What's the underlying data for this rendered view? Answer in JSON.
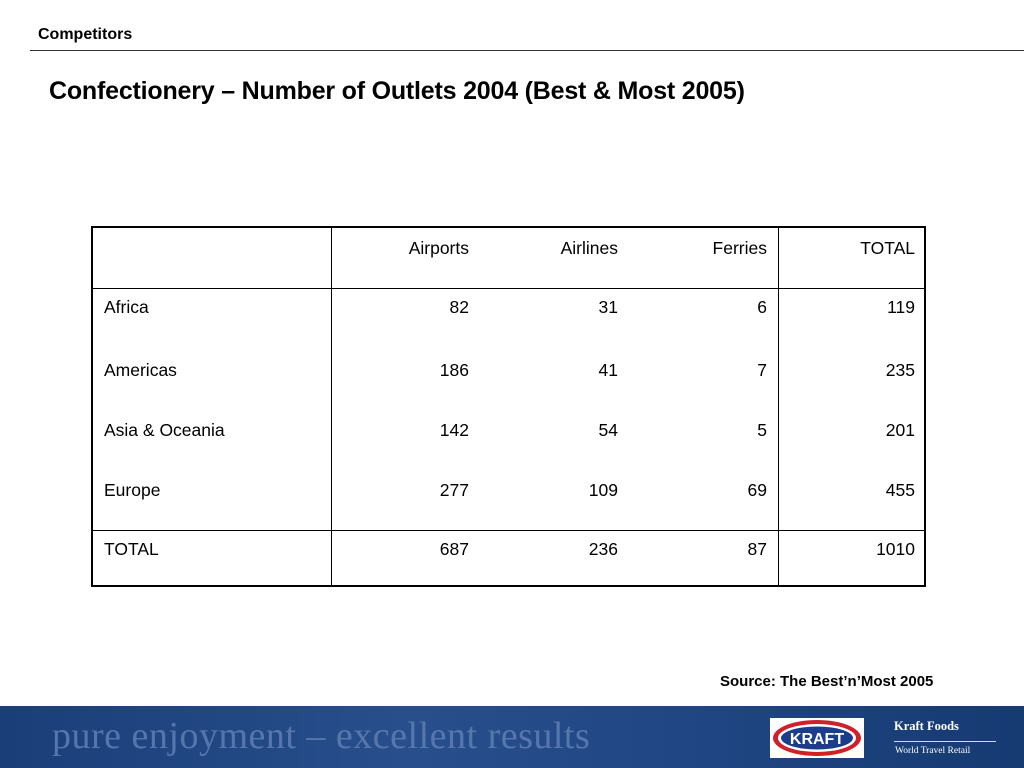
{
  "header": {
    "section": "Competitors",
    "title": "Confectionery – Number of Outlets 2004 (Best & Most 2005)"
  },
  "table": {
    "columns": [
      "",
      "Airports",
      "Airlines",
      "Ferries",
      "TOTAL"
    ],
    "rows": [
      [
        "Africa",
        "82",
        "31",
        "6",
        "119"
      ],
      [
        "Americas",
        "186",
        "41",
        "7",
        "235"
      ],
      [
        "Asia & Oceania",
        "142",
        "54",
        "5",
        "201"
      ],
      [
        "Europe",
        "277",
        "109",
        "69",
        "455"
      ]
    ],
    "total": [
      "TOTAL",
      "687",
      "236",
      "87",
      "1010"
    ]
  },
  "source": "Source: The Best’n’Most 2005",
  "footer": {
    "slogan": "pure enjoyment – excellent results",
    "logo_text": "KRAFT",
    "brand": "Kraft Foods",
    "brand_sub": "World Travel Retail",
    "logo_red": "#d0202c",
    "logo_blue": "#1a3e8c"
  }
}
